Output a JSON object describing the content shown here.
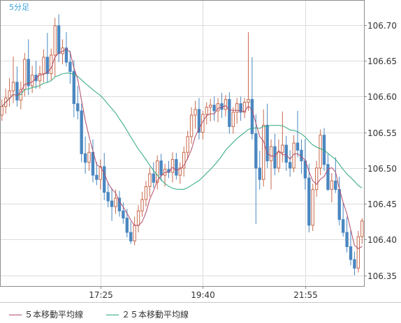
{
  "chart_data": {
    "type": "candlestick",
    "title": "5分足",
    "y_ticks": [
      "106.70",
      "106.65",
      "106.60",
      "106.55",
      "106.50",
      "106.45",
      "106.40",
      "106.35"
    ],
    "y_tick_values": [
      106.7,
      106.65,
      106.6,
      106.55,
      106.5,
      106.45,
      106.4,
      106.35
    ],
    "ylim": [
      106.335,
      106.735
    ],
    "x_ticks": [
      "17:25",
      "19:40",
      "21:55"
    ],
    "x_tick_index": [
      26,
      53,
      80
    ],
    "grid": true,
    "legend_position": "bottom-left",
    "colors": {
      "up": "#c8694c",
      "down": "#4a87c0",
      "ma5": "#b04a68",
      "ma25": "#2aa87c",
      "grid": "#dcdcdc",
      "axis": "#333333",
      "title": "#3aa0d8"
    },
    "ohlc": [
      [
        106.574,
        106.596,
        106.566,
        106.586
      ],
      [
        106.586,
        106.611,
        106.576,
        106.598
      ],
      [
        106.598,
        106.626,
        106.586,
        106.608
      ],
      [
        106.608,
        106.656,
        106.591,
        106.62
      ],
      [
        106.62,
        106.642,
        106.586,
        106.595
      ],
      [
        106.595,
        106.621,
        106.582,
        106.61
      ],
      [
        106.61,
        106.661,
        106.6,
        106.652
      ],
      [
        106.652,
        106.68,
        106.602,
        106.615
      ],
      [
        106.615,
        106.643,
        106.605,
        106.63
      ],
      [
        106.63,
        106.65,
        106.611,
        106.622
      ],
      [
        106.622,
        106.643,
        106.611,
        106.632
      ],
      [
        106.632,
        106.666,
        106.62,
        106.655
      ],
      [
        106.655,
        106.689,
        106.62,
        106.632
      ],
      [
        106.632,
        106.667,
        106.622,
        106.658
      ],
      [
        106.658,
        106.71,
        106.628,
        106.699
      ],
      [
        106.699,
        106.715,
        106.648,
        106.66
      ],
      [
        106.66,
        106.68,
        106.645,
        106.668
      ],
      [
        106.668,
        106.69,
        106.642,
        106.648
      ],
      [
        106.648,
        106.664,
        106.618,
        106.635
      ],
      [
        106.635,
        106.651,
        106.571,
        106.59
      ],
      [
        106.59,
        106.615,
        106.568,
        106.58
      ],
      [
        106.58,
        106.59,
        106.508,
        106.52
      ],
      [
        106.52,
        106.544,
        106.492,
        106.508
      ],
      [
        106.508,
        106.535,
        106.496,
        106.522
      ],
      [
        106.522,
        106.54,
        106.48,
        106.49
      ],
      [
        106.49,
        106.508,
        106.476,
        106.484
      ],
      [
        106.484,
        106.512,
        106.47,
        106.502
      ],
      [
        106.502,
        106.521,
        106.455,
        106.466
      ],
      [
        106.466,
        106.481,
        106.445,
        106.454
      ],
      [
        106.454,
        106.472,
        106.426,
        106.446
      ],
      [
        106.446,
        106.47,
        106.436,
        106.458
      ],
      [
        106.458,
        106.468,
        106.432,
        106.44
      ],
      [
        106.44,
        106.452,
        106.422,
        106.43
      ],
      [
        106.43,
        106.443,
        106.403,
        106.41
      ],
      [
        106.41,
        106.425,
        106.394,
        106.398
      ],
      [
        106.398,
        106.432,
        106.392,
        106.42
      ],
      [
        106.42,
        106.448,
        106.41,
        106.44
      ],
      [
        106.44,
        106.467,
        106.432,
        106.456
      ],
      [
        106.456,
        106.482,
        106.446,
        106.474
      ],
      [
        106.474,
        106.501,
        106.46,
        106.492
      ],
      [
        106.492,
        106.508,
        106.472,
        106.48
      ],
      [
        106.48,
        106.518,
        106.47,
        106.51
      ],
      [
        106.51,
        106.52,
        106.482,
        106.49
      ],
      [
        106.49,
        106.506,
        106.474,
        106.498
      ],
      [
        106.498,
        106.51,
        106.486,
        106.494
      ],
      [
        106.494,
        106.522,
        106.48,
        106.512
      ],
      [
        106.512,
        106.521,
        106.484,
        106.49
      ],
      [
        106.49,
        106.508,
        106.478,
        106.5
      ],
      [
        106.5,
        106.53,
        106.488,
        106.522
      ],
      [
        106.522,
        106.552,
        106.512,
        106.544
      ],
      [
        106.544,
        106.585,
        106.534,
        106.574
      ],
      [
        106.574,
        106.594,
        106.555,
        106.582
      ],
      [
        106.582,
        106.598,
        106.54,
        106.55
      ],
      [
        106.55,
        106.58,
        106.54,
        106.575
      ],
      [
        106.575,
        106.592,
        106.561,
        106.585
      ],
      [
        106.585,
        106.597,
        106.565,
        106.588
      ],
      [
        106.588,
        106.6,
        106.566,
        106.58
      ],
      [
        106.58,
        106.598,
        106.564,
        106.59
      ],
      [
        106.59,
        106.605,
        106.57,
        106.582
      ],
      [
        106.582,
        106.602,
        106.572,
        106.596
      ],
      [
        106.596,
        106.606,
        106.548,
        106.558
      ],
      [
        106.558,
        106.585,
        106.548,
        106.578
      ],
      [
        106.578,
        106.598,
        106.562,
        106.59
      ],
      [
        106.59,
        106.6,
        106.566,
        106.578
      ],
      [
        106.578,
        106.598,
        106.57,
        106.592
      ],
      [
        106.592,
        106.69,
        106.58,
        106.596
      ],
      [
        106.596,
        106.655,
        106.54,
        106.548
      ],
      [
        106.548,
        106.575,
        106.422,
        106.5
      ],
      [
        106.5,
        106.524,
        106.47,
        106.484
      ],
      [
        106.484,
        106.582,
        106.474,
        106.56
      ],
      [
        106.56,
        106.59,
        106.5,
        106.51
      ],
      [
        106.51,
        106.54,
        106.47,
        106.53
      ],
      [
        106.53,
        106.548,
        106.49,
        106.5
      ],
      [
        106.5,
        106.54,
        106.494,
        106.522
      ],
      [
        106.522,
        106.579,
        106.508,
        106.532
      ],
      [
        106.532,
        106.545,
        106.496,
        106.508
      ],
      [
        106.508,
        106.525,
        106.488,
        106.5
      ],
      [
        106.5,
        106.546,
        106.494,
        106.535
      ],
      [
        106.535,
        106.58,
        106.515,
        106.525
      ],
      [
        106.525,
        106.54,
        106.492,
        106.51
      ],
      [
        106.51,
        106.541,
        106.47,
        106.486
      ],
      [
        106.486,
        106.506,
        106.41,
        106.42
      ],
      [
        106.42,
        106.478,
        106.412,
        106.47
      ],
      [
        106.47,
        106.51,
        106.46,
        106.5
      ],
      [
        106.5,
        106.554,
        106.49,
        106.546
      ],
      [
        106.546,
        106.556,
        106.496,
        106.505
      ],
      [
        106.505,
        106.52,
        106.468,
        106.47
      ],
      [
        106.47,
        106.493,
        106.452,
        106.482
      ],
      [
        106.482,
        106.515,
        106.465,
        106.47
      ],
      [
        106.47,
        106.488,
        106.42,
        106.428
      ],
      [
        106.428,
        106.451,
        106.404,
        106.41
      ],
      [
        106.41,
        106.432,
        106.382,
        106.39
      ],
      [
        106.39,
        106.413,
        106.364,
        106.372
      ],
      [
        106.372,
        106.383,
        106.35,
        106.36
      ],
      [
        106.36,
        106.412,
        106.354,
        106.404
      ],
      [
        106.404,
        106.43,
        106.394,
        106.426
      ]
    ]
  }
}
